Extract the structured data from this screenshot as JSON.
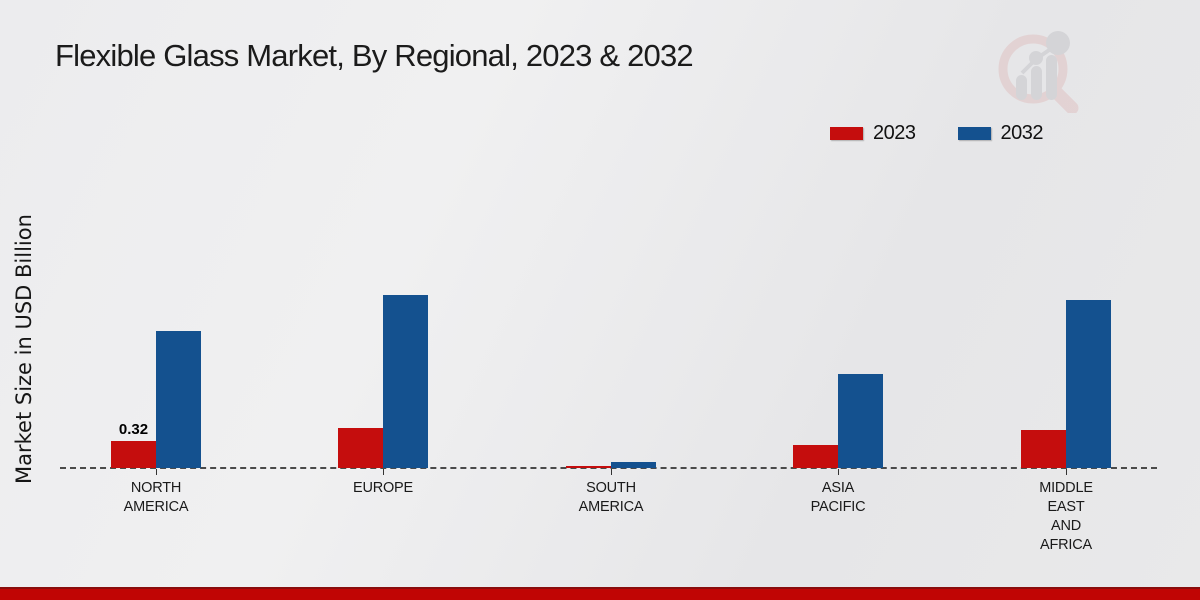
{
  "title": "Flexible Glass Market, By Regional, 2023 & 2032",
  "y_axis_label": "Market Size in USD Billion",
  "legend": {
    "items": [
      {
        "label": "2023",
        "color": "#c50d0d"
      },
      {
        "label": "2032",
        "color": "#14518f"
      }
    ]
  },
  "logo": {
    "name": "market-research-future-watermark-logo"
  },
  "colors": {
    "series_2023": "#c50d0d",
    "series_2032": "#14518f",
    "baseline_dash": "#4a4a4a",
    "footer_red": "#c00504",
    "footer_dark_red": "#8a0d0d",
    "background": "#e9e9ea"
  },
  "chart_data": {
    "type": "bar",
    "title": "Flexible Glass Market, By Regional, 2023 & 2032",
    "xlabel": "",
    "ylabel": "Market Size in USD Billion",
    "categories": [
      "North America",
      "Europe",
      "South America",
      "Asia Pacific",
      "Middle East and Africa"
    ],
    "category_labels": [
      [
        "NORTH",
        "AMERICA"
      ],
      [
        "EUROPE"
      ],
      [
        "SOUTH",
        "AMERICA"
      ],
      [
        "ASIA",
        "PACIFIC"
      ],
      [
        "MIDDLE",
        "EAST",
        "AND",
        "AFRICA"
      ]
    ],
    "series": [
      {
        "name": "2023",
        "color": "#c50d0d",
        "values": [
          0.32,
          0.47,
          0.02,
          0.27,
          0.45
        ]
      },
      {
        "name": "2032",
        "color": "#14518f",
        "values": [
          1.62,
          2.05,
          0.07,
          1.11,
          1.99
        ]
      }
    ],
    "data_labels": [
      {
        "series_index": 0,
        "category_index": 0,
        "text": "0.32"
      }
    ],
    "ylim": [
      0,
      2.2
    ],
    "grid": false,
    "y_axis_ticks_visible": false,
    "x_baseline_style": "dashed",
    "legend_position": "top-right"
  }
}
